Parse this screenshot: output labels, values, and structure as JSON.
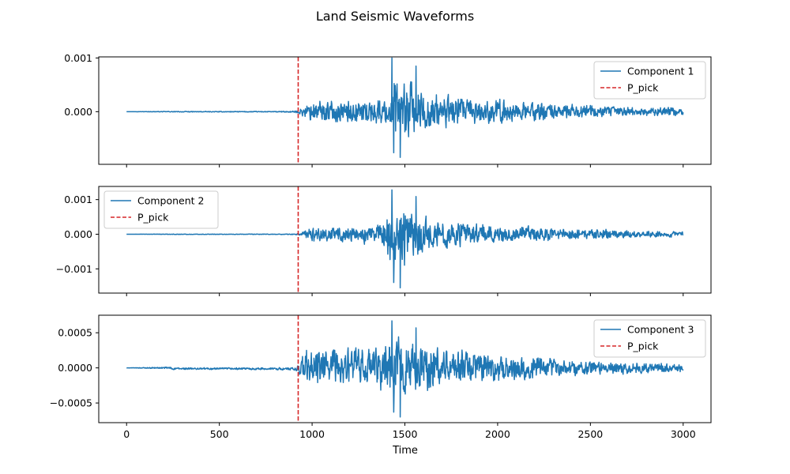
{
  "figure": {
    "title": "Land Seismic Waveforms",
    "xlabel": "Time"
  },
  "colors": {
    "trace": "#1f77b4",
    "pick": "#d62728",
    "axis": "#000000",
    "legend_border": "#cccccc"
  },
  "chart_data": [
    {
      "type": "line",
      "series": [
        {
          "name": "Component 1",
          "x": [
            0,
            240,
            800,
            900,
            925,
            1000,
            1200,
            1350,
            1420,
            1440,
            1470,
            1500,
            1530,
            1560,
            1600,
            1650,
            1700,
            1800,
            2000,
            2200,
            2400,
            2600,
            2800,
            3000
          ],
          "envelope": [
            0.0,
            1e-05,
            1e-05,
            2e-05,
            4e-05,
            0.00028,
            0.00028,
            0.0003,
            0.0004,
            0.00095,
            0.00075,
            0.00085,
            0.0008,
            0.00065,
            0.0005,
            0.00045,
            0.00045,
            0.00038,
            0.00028,
            0.00025,
            0.00018,
            0.00014,
            0.00012,
            0.0001
          ],
          "min": -0.00085,
          "max": 0.001
        },
        {
          "name": "P_pick",
          "x": 925,
          "style": "dashed"
        }
      ],
      "ylim": [
        -0.00098,
        0.00102
      ],
      "yticks": [
        0.0,
        0.001
      ],
      "ytick_labels": [
        "0.000",
        "0.001"
      ],
      "legend": "upper right"
    },
    {
      "type": "line",
      "series": [
        {
          "name": "Component 2",
          "x": [
            0,
            240,
            800,
            900,
            925,
            1000,
            1200,
            1350,
            1400,
            1430,
            1470,
            1500,
            1550,
            1600,
            1650,
            1700,
            1800,
            2000,
            2200,
            2400,
            2600,
            2800,
            3000
          ],
          "envelope": [
            0.0,
            1e-05,
            1e-05,
            2e-05,
            4e-05,
            0.0003,
            0.0003,
            0.0004,
            0.0007,
            0.0013,
            0.001,
            0.0012,
            0.0011,
            0.0008,
            0.0006,
            0.00055,
            0.00045,
            0.00035,
            0.0003,
            0.00022,
            0.00018,
            0.00014,
            0.0001
          ],
          "min": -0.00155,
          "max": 0.00128
        },
        {
          "name": "P_pick",
          "x": 925,
          "style": "dashed"
        }
      ],
      "ylim": [
        -0.0017,
        0.00138
      ],
      "yticks": [
        -0.001,
        0.0,
        0.001
      ],
      "ytick_labels": [
        "−0.001",
        "0.000",
        "0.001"
      ],
      "legend": "upper left"
    },
    {
      "type": "line",
      "series": [
        {
          "name": "Component 3",
          "x": [
            0,
            240,
            800,
            900,
            925,
            960,
            1100,
            1300,
            1400,
            1450,
            1500,
            1550,
            1600,
            1700,
            1800,
            2000,
            2200,
            2400,
            2600,
            2800,
            3000
          ],
          "envelope": [
            0.0,
            2e-05,
            2e-05,
            3e-05,
            6e-05,
            0.00035,
            0.0004,
            0.0004,
            0.00055,
            0.00065,
            0.0006,
            0.00055,
            0.0005,
            0.0004,
            0.00035,
            0.00025,
            0.00022,
            0.00015,
            0.00012,
            0.0001,
            8e-05
          ],
          "min": -0.0007,
          "max": 0.00067
        },
        {
          "name": "P_pick",
          "x": 925,
          "style": "dashed"
        }
      ],
      "ylim": [
        -0.00078,
        0.00075
      ],
      "yticks": [
        -0.0005,
        0.0,
        0.0005
      ],
      "ytick_labels": [
        "−0.0005",
        "0.0000",
        "0.0005"
      ],
      "legend": "upper right"
    }
  ],
  "xaxis": {
    "xlim": [
      -150,
      3150
    ],
    "xticks": [
      0,
      500,
      1000,
      1500,
      2000,
      2500,
      3000
    ],
    "xtick_labels": [
      "0",
      "500",
      "1000",
      "1500",
      "2000",
      "2500",
      "3000"
    ]
  }
}
